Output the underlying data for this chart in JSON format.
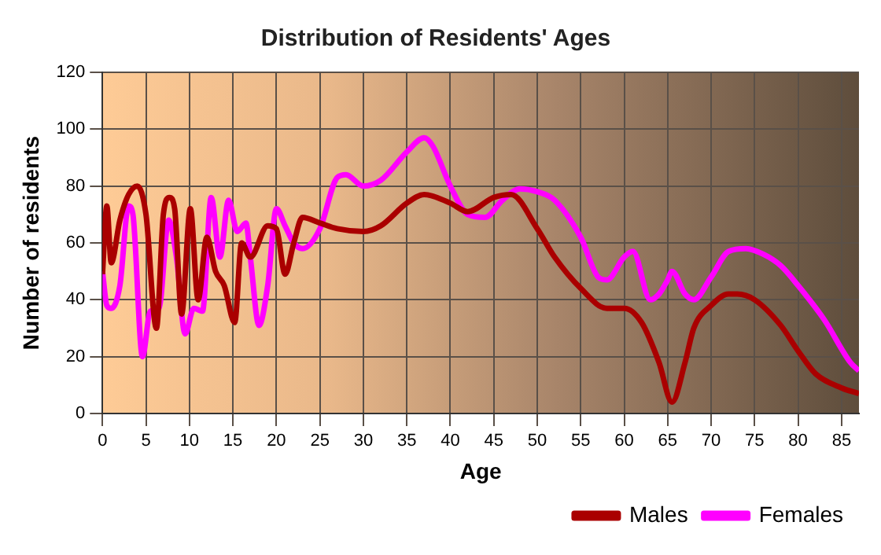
{
  "chart_data": {
    "type": "line",
    "title": "Distribution of Residents' Ages",
    "xlabel": "Age",
    "ylabel": "Number of residents",
    "xlim": [
      0,
      87
    ],
    "xticks": [
      0,
      5,
      10,
      15,
      20,
      25,
      30,
      35,
      40,
      45,
      50,
      55,
      60,
      65,
      70,
      75,
      80,
      85
    ],
    "ylim": [
      0,
      120
    ],
    "yticks": [
      0,
      20,
      40,
      60,
      80,
      100,
      120
    ],
    "grid": true,
    "legend": "bottom",
    "marker": "none",
    "line_style": "solid",
    "series": [
      {
        "name": "Males",
        "color": "#aa0000",
        "x": [
          0,
          0.5,
          1,
          2,
          3,
          4,
          5,
          6.2,
          7,
          7.7,
          8.3,
          9.1,
          10.1,
          11,
          12,
          13,
          14,
          15.2,
          16,
          17,
          19,
          20,
          21,
          22,
          23,
          25,
          27,
          30,
          32,
          35,
          37,
          40,
          42,
          45,
          47,
          50,
          52,
          55,
          58,
          60,
          62,
          64,
          65.5,
          67,
          68,
          70,
          72,
          73,
          75,
          78,
          80,
          82,
          85,
          87
        ],
        "values": [
          49,
          73,
          53,
          68,
          77,
          80,
          70,
          30,
          70,
          76,
          72,
          35,
          72,
          40,
          62,
          50,
          45,
          32,
          60,
          55,
          66,
          65,
          49,
          60,
          69,
          67,
          65,
          64,
          66,
          74,
          77,
          74,
          71,
          76,
          77,
          65,
          55,
          44,
          37,
          37,
          32,
          18,
          4,
          18,
          30,
          38,
          42,
          42,
          40,
          31,
          22,
          14,
          9,
          7
        ]
      },
      {
        "name": "Females",
        "color": "#ff00ff",
        "x": [
          0,
          0.5,
          1,
          2,
          3,
          3.5,
          4.6,
          5.5,
          6.5,
          7.6,
          8.5,
          9.5,
          10.5,
          11.5,
          12.5,
          13.5,
          14.5,
          15.5,
          16.5,
          17,
          18,
          19,
          20,
          21,
          22,
          23,
          25,
          27,
          28,
          30,
          32,
          35,
          37,
          38,
          40,
          42,
          44,
          46,
          48,
          50,
          52,
          55,
          57,
          58,
          60,
          61,
          63,
          64,
          65,
          65.5,
          67,
          68,
          70,
          72,
          74,
          76,
          78,
          80,
          83,
          86,
          87
        ],
        "values": [
          50,
          38,
          37,
          45,
          73,
          70,
          20,
          36,
          37,
          68,
          55,
          28,
          37,
          36,
          76,
          55,
          75,
          64,
          67,
          55,
          31,
          45,
          72,
          66,
          60,
          58,
          65,
          83,
          84,
          80,
          82,
          92,
          97,
          94,
          80,
          70,
          69,
          75,
          79,
          78,
          75,
          62,
          48,
          47,
          55,
          57,
          40,
          42,
          47,
          50,
          42,
          40,
          48,
          57,
          58,
          56,
          52,
          45,
          33,
          18,
          15
        ]
      }
    ]
  }
}
